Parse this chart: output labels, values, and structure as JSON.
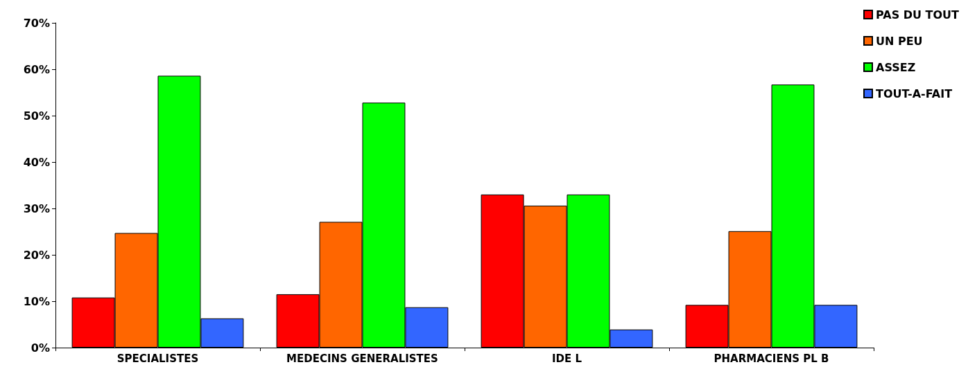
{
  "chart_data": {
    "type": "bar",
    "categories": [
      "SPECIALISTES",
      "MEDECINS GENERALISTES",
      "IDE L",
      "PHARMACIENS PL B"
    ],
    "series": [
      {
        "name": "PAS DU TOUT",
        "color": "#ff0000",
        "values": [
          10.8,
          11.5,
          33.0,
          9.2
        ]
      },
      {
        "name": "UN PEU",
        "color": "#ff6600",
        "values": [
          24.7,
          27.1,
          30.6,
          25.1
        ]
      },
      {
        "name": "ASSEZ",
        "color": "#00ff00",
        "values": [
          58.6,
          52.8,
          33.0,
          56.7
        ]
      },
      {
        "name": "TOUT-A-FAIT",
        "color": "#3366ff",
        "values": [
          6.3,
          8.7,
          3.9,
          9.2
        ]
      }
    ],
    "ylim": [
      0,
      70
    ],
    "yticks": [
      {
        "value": 0,
        "label": "0%"
      },
      {
        "value": 10,
        "label": "10%"
      },
      {
        "value": 20,
        "label": "20%"
      },
      {
        "value": 30,
        "label": "30%"
      },
      {
        "value": 40,
        "label": "40%"
      },
      {
        "value": 50,
        "label": "50%"
      },
      {
        "value": 60,
        "label": "60%"
      },
      {
        "value": 70,
        "label": "70%"
      }
    ],
    "grid": false,
    "legend": "top right"
  }
}
